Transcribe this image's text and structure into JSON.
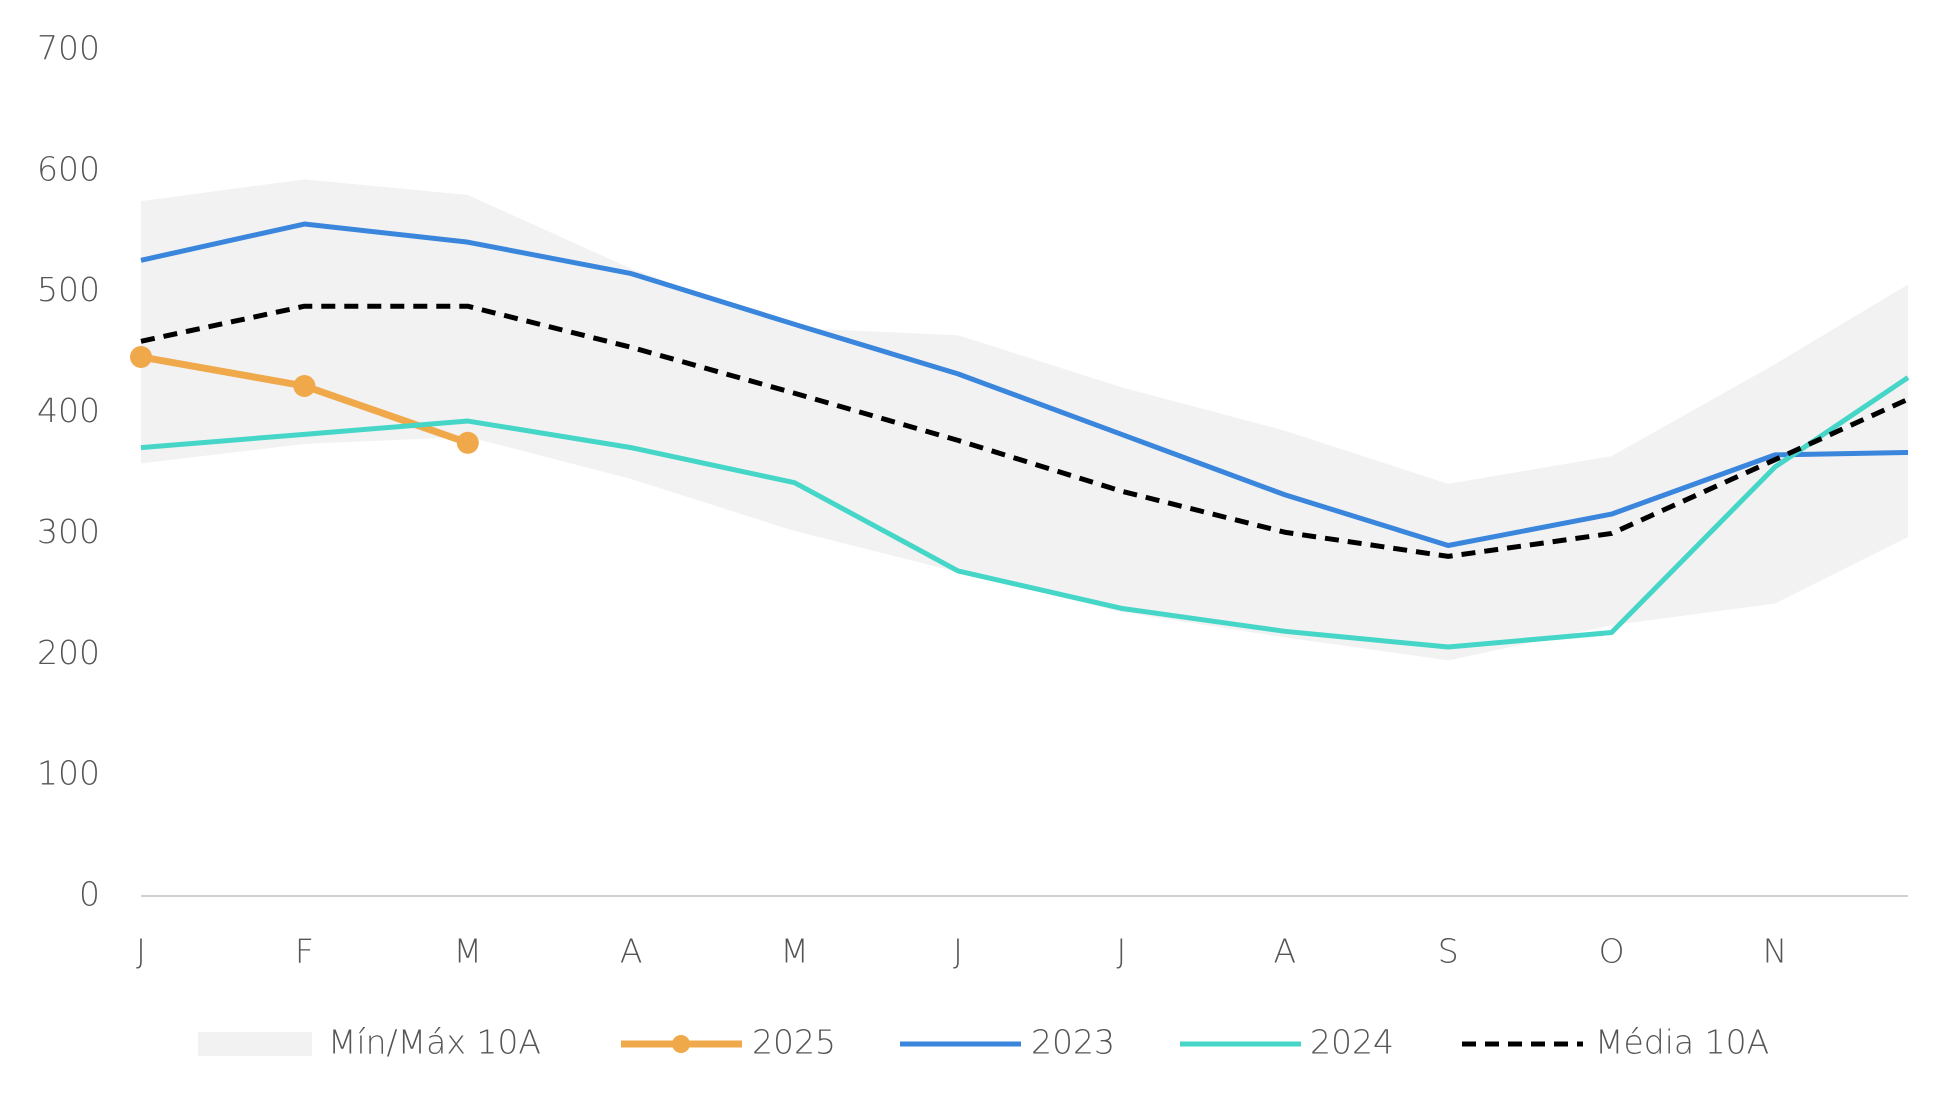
{
  "chart_data": {
    "type": "line",
    "categories": [
      "J",
      "F",
      "M",
      "A",
      "M",
      "J",
      "J",
      "A",
      "S",
      "O",
      "N",
      null
    ],
    "ylim": [
      0,
      700
    ],
    "yticks": [
      0,
      100,
      200,
      300,
      400,
      500,
      600,
      700
    ],
    "grid": false,
    "legend": "bottom",
    "band": {
      "name": "Mín/Máx 10A",
      "color": "#f2f2f2",
      "min": [
        358,
        374,
        380,
        345,
        302,
        268,
        235,
        214,
        195,
        224,
        242,
        297
      ],
      "max": [
        575,
        593,
        580,
        519,
        470,
        464,
        421,
        385,
        341,
        364,
        440,
        506
      ]
    },
    "series": [
      {
        "name": "2025",
        "color": "#f0a94a",
        "markers": true,
        "dash": false,
        "values": [
          446,
          422,
          375,
          null,
          null,
          null,
          null,
          null,
          null,
          null,
          null,
          null
        ]
      },
      {
        "name": "2023",
        "color": "#3a86dc",
        "markers": false,
        "dash": false,
        "values": [
          526,
          556,
          541,
          515,
          473,
          432,
          382,
          332,
          290,
          316,
          365,
          367
        ]
      },
      {
        "name": "2024",
        "color": "#45d6c8",
        "markers": false,
        "dash": false,
        "values": [
          371,
          382,
          393,
          371,
          342,
          269,
          238,
          219,
          206,
          218,
          355,
          429
        ]
      },
      {
        "name": "Média 10A",
        "color": "#000000",
        "markers": false,
        "dash": true,
        "values": [
          459,
          488,
          488,
          454,
          416,
          377,
          335,
          301,
          281,
          300,
          361,
          411
        ]
      }
    ]
  }
}
